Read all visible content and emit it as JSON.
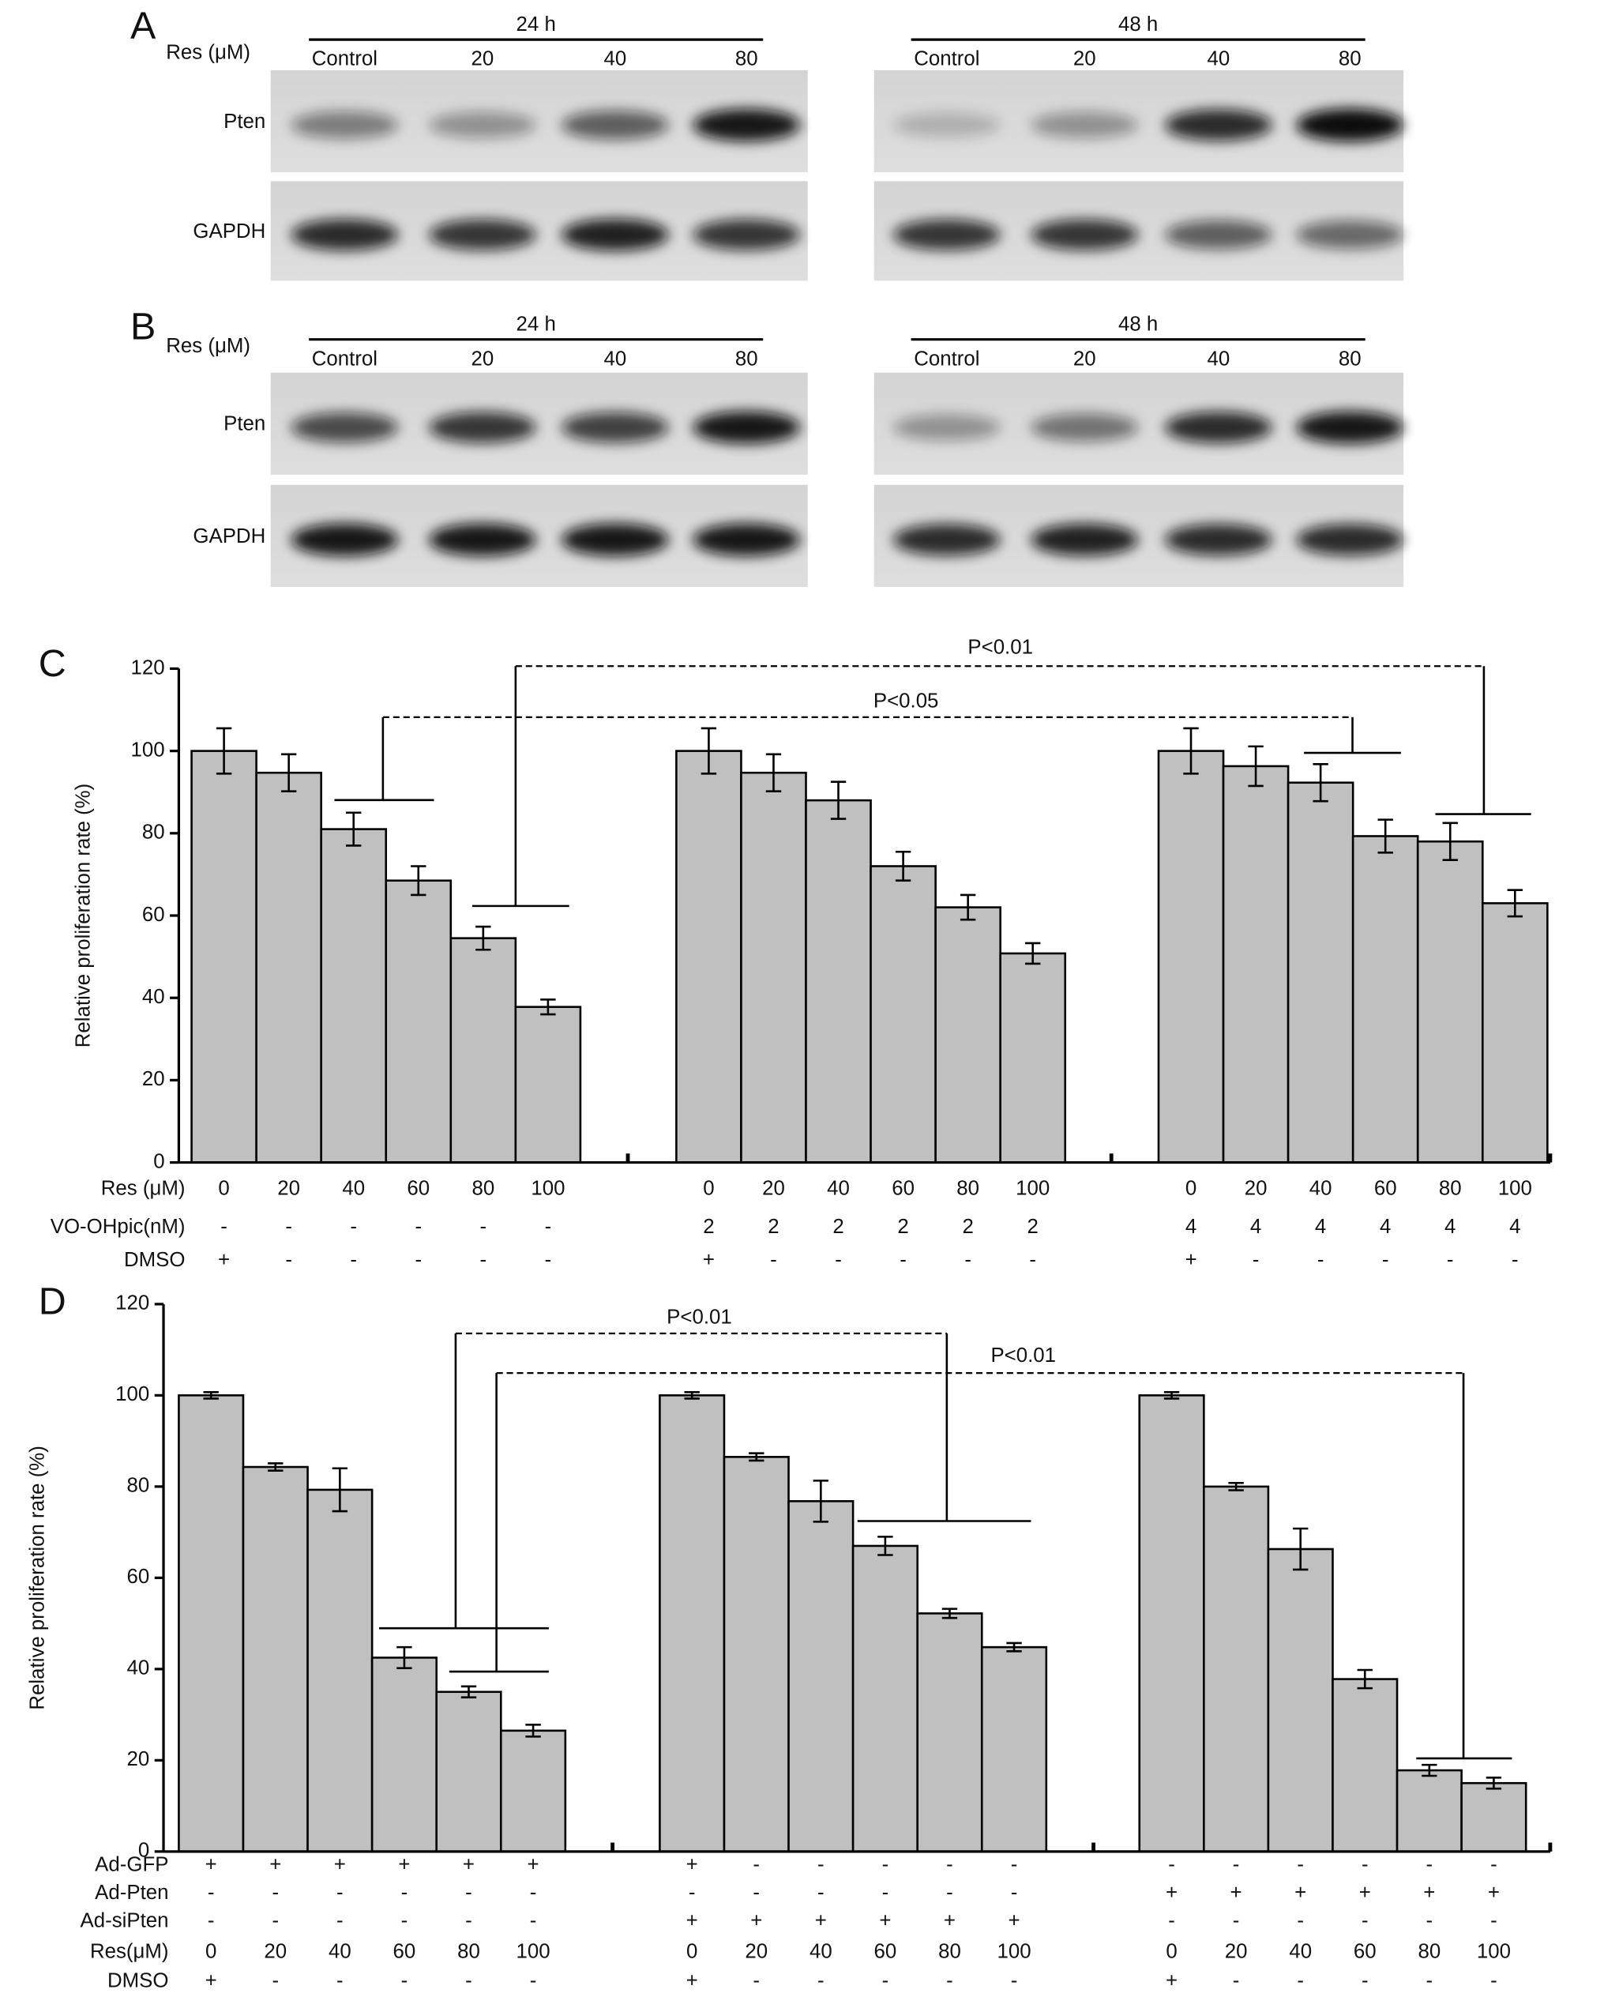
{
  "blots": [
    {
      "letter": "A",
      "treatment_label": "Res (μM)",
      "rows": [
        "Pten",
        "GAPDH"
      ],
      "blocks": [
        {
          "time": "24 h",
          "lanes": [
            "Control",
            "20",
            "40",
            "80"
          ]
        },
        {
          "time": "48 h",
          "lanes": [
            "Control",
            "20",
            "40",
            "80"
          ]
        }
      ]
    },
    {
      "letter": "B",
      "treatment_label": "Res (μM)",
      "rows": [
        "Pten",
        "GAPDH"
      ],
      "blocks": [
        {
          "time": "24 h",
          "lanes": [
            "Control",
            "20",
            "40",
            "80"
          ]
        },
        {
          "time": "48 h",
          "lanes": [
            "Control",
            "20",
            "40",
            "80"
          ]
        }
      ]
    }
  ],
  "chart_data": [
    {
      "type": "bar",
      "letter": "C",
      "ylabel": "Relative proliferation rate (%)",
      "color": "#c0c0c0",
      "ylim": [
        0,
        120
      ],
      "yticks": [
        0,
        20,
        40,
        60,
        80,
        100,
        120
      ],
      "values": [
        100,
        94.7,
        81,
        68.5,
        54.5,
        37.8,
        100,
        94.7,
        88,
        72,
        62,
        50.8,
        100,
        96.3,
        92.3,
        79.3,
        78,
        63
      ],
      "errors": [
        5.5,
        4.5,
        4,
        3.5,
        2.8,
        1.8,
        5.5,
        4.5,
        4.5,
        3.5,
        3,
        2.5,
        5.5,
        4.8,
        4.5,
        4,
        4.5,
        3.2
      ],
      "rows": [
        {
          "label": "Res (μM)",
          "cells": [
            "0",
            "20",
            "40",
            "60",
            "80",
            "100",
            "0",
            "20",
            "40",
            "60",
            "80",
            "100",
            "0",
            "20",
            "40",
            "60",
            "80",
            "100"
          ]
        },
        {
          "label": "VO-OHpic(nM)",
          "cells": [
            "-",
            "-",
            "-",
            "-",
            "-",
            "-",
            "2",
            "2",
            "2",
            "2",
            "2",
            "2",
            "4",
            "4",
            "4",
            "4",
            "4",
            "4"
          ]
        },
        {
          "label": "DMSO",
          "cells": [
            "+",
            "-",
            "-",
            "-",
            "-",
            "-",
            "+",
            "-",
            "-",
            "-",
            "-",
            "-",
            "+",
            "-",
            "-",
            "-",
            "-",
            "-"
          ]
        }
      ],
      "annotations": [
        "P<0.01",
        "P<0.05"
      ]
    },
    {
      "type": "bar",
      "letter": "D",
      "ylabel": "Relative proliferation rate (%)",
      "color": "#c0c0c0",
      "ylim": [
        0,
        120
      ],
      "yticks": [
        0,
        20,
        40,
        60,
        80,
        100,
        120
      ],
      "values": [
        100,
        84.3,
        79.3,
        42.5,
        35,
        26.5,
        100,
        86.5,
        76.8,
        67,
        52.2,
        44.8,
        100,
        80,
        66.3,
        37.8,
        17.8,
        15
      ],
      "errors": [
        0.7,
        0.8,
        4.7,
        2.3,
        1.2,
        1.3,
        0.7,
        0.8,
        4.5,
        2,
        1,
        0.9,
        0.7,
        0.8,
        4.5,
        2,
        1.2,
        1.2
      ],
      "rows": [
        {
          "label": "Ad-GFP",
          "cells": [
            "+",
            "+",
            "+",
            "+",
            "+",
            "+",
            "+",
            "-",
            "-",
            "-",
            "-",
            "-",
            "-",
            "-",
            "-",
            "-",
            "-",
            "-"
          ]
        },
        {
          "label": "Ad-Pten",
          "cells": [
            "-",
            "-",
            "-",
            "-",
            "-",
            "-",
            "-",
            "-",
            "-",
            "-",
            "-",
            "-",
            "+",
            "+",
            "+",
            "+",
            "+",
            "+"
          ]
        },
        {
          "label": "Ad-siPten",
          "cells": [
            "-",
            "-",
            "-",
            "-",
            "-",
            "-",
            "+",
            "+",
            "+",
            "+",
            "+",
            "+",
            "-",
            "-",
            "-",
            "-",
            "-",
            "-"
          ]
        },
        {
          "label": "Res(μM)",
          "cells": [
            "0",
            "20",
            "40",
            "60",
            "80",
            "100",
            "0",
            "20",
            "40",
            "60",
            "80",
            "100",
            "0",
            "20",
            "40",
            "60",
            "80",
            "100"
          ]
        },
        {
          "label": "DMSO",
          "cells": [
            "+",
            "-",
            "-",
            "-",
            "-",
            "-",
            "+",
            "-",
            "-",
            "-",
            "-",
            "-",
            "+",
            "-",
            "-",
            "-",
            "-",
            "-"
          ]
        }
      ],
      "annotations": [
        "P<0.01",
        "P<0.01"
      ]
    }
  ]
}
